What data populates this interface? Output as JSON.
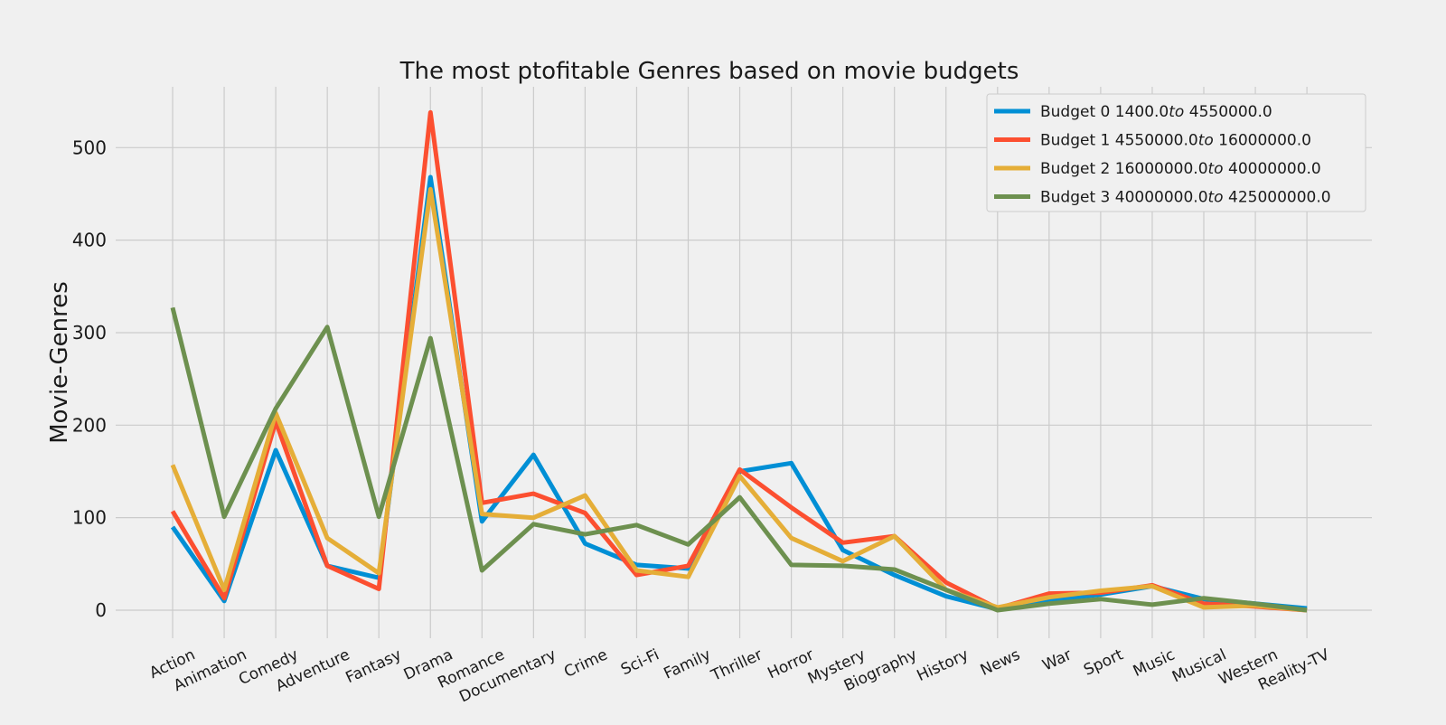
{
  "chart_data": {
    "type": "line",
    "title": "The most ptofitable Genres based on movie budgets",
    "xlabel": "",
    "ylabel": "Movie-Genres",
    "ylim": [
      -25,
      565
    ],
    "yticks": [
      "0",
      "100",
      "200",
      "300",
      "400",
      "500"
    ],
    "grid": true,
    "legend_position": "top-right",
    "categories": [
      "Action",
      "Animation",
      "Comedy",
      "Adventure",
      "Fantasy",
      "Drama",
      "Romance",
      "Documentary",
      "Crime",
      "Sci-Fi",
      "Family",
      "Thriller",
      "Horror",
      "Mystery",
      "Biography",
      "History",
      "News",
      "War",
      "Sport",
      "Music",
      "Musical",
      "Western",
      "Reality-TV"
    ],
    "series": [
      {
        "name": "Budget  0  1400.0",
        "name_italic": "to",
        "name_suffix": " 4550000.0",
        "color": "#008fd5",
        "values": [
          90,
          10,
          173,
          48,
          35,
          468,
          96,
          168,
          72,
          49,
          45,
          150,
          159,
          65,
          38,
          15,
          1,
          11,
          17,
          26,
          12,
          7,
          2
        ]
      },
      {
        "name": "Budget  1  4550000.0",
        "name_italic": "to",
        "name_suffix": " 16000000.0",
        "color": "#fc4f30",
        "values": [
          107,
          13,
          204,
          48,
          23,
          538,
          116,
          126,
          105,
          38,
          48,
          152,
          111,
          73,
          80,
          30,
          2,
          18,
          19,
          27,
          7,
          4,
          0
        ]
      },
      {
        "name": "Budget  2  16000000.0",
        "name_italic": "to",
        "name_suffix": " 40000000.0",
        "color": "#e5ae38",
        "values": [
          157,
          22,
          213,
          78,
          40,
          455,
          104,
          100,
          124,
          43,
          36,
          145,
          78,
          53,
          80,
          22,
          3,
          14,
          21,
          26,
          3,
          5,
          0
        ]
      },
      {
        "name": "Budget  3  40000000.0",
        "name_italic": "to",
        "name_suffix": " 425000000.0",
        "color": "#6d904f",
        "values": [
          327,
          101,
          218,
          306,
          101,
          294,
          43,
          93,
          82,
          92,
          71,
          122,
          49,
          48,
          44,
          22,
          0,
          7,
          12,
          6,
          13,
          7,
          0
        ]
      }
    ]
  }
}
